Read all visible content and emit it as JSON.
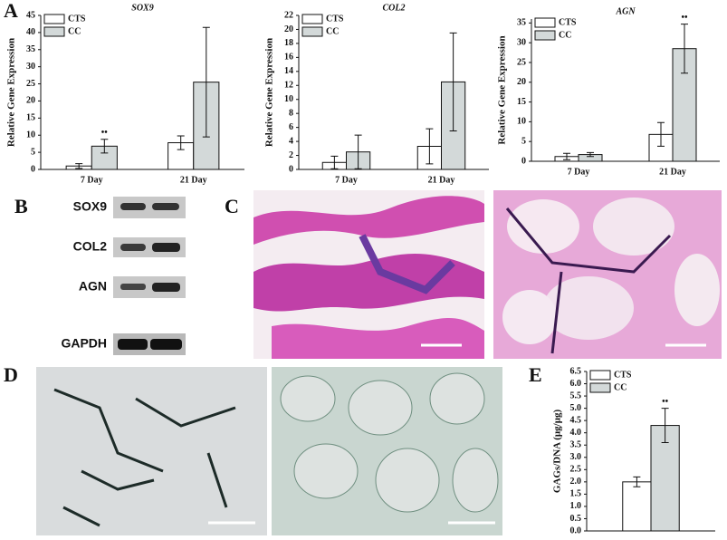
{
  "panels": {
    "a": "A",
    "b": "B",
    "c": "C",
    "d": "D",
    "e": "E"
  },
  "blot": {
    "labels": [
      "SOX9",
      "COL2",
      "AGN",
      "GAPDH"
    ]
  },
  "chart_data": [
    {
      "type": "bar",
      "title": "SOX9",
      "y_label": "Relative Gene Expression",
      "categories": [
        "7 Day",
        "21 Day"
      ],
      "series": [
        {
          "name": "CTS",
          "color": "#ffffff",
          "values": [
            1,
            7.8
          ],
          "errors": [
            0.7,
            2
          ]
        },
        {
          "name": "CC",
          "color": "#d3d9d9",
          "values": [
            6.8,
            25.5
          ],
          "errors": [
            2,
            16
          ]
        }
      ],
      "annotations": [
        "••"
      ],
      "ylim": [
        0,
        45
      ],
      "yticks": [
        0,
        5,
        10,
        15,
        20,
        25,
        30,
        35,
        40,
        45
      ]
    },
    {
      "type": "bar",
      "title": "COL2",
      "y_label": "Relative Gene Expression",
      "categories": [
        "7 Day",
        "21 Day"
      ],
      "series": [
        {
          "name": "CTS",
          "color": "#ffffff",
          "values": [
            1,
            3.3
          ],
          "errors": [
            0.9,
            2.5
          ]
        },
        {
          "name": "CC",
          "color": "#d3d9d9",
          "values": [
            2.5,
            12.5
          ],
          "errors": [
            2.4,
            7
          ]
        }
      ],
      "annotations": [],
      "ylim": [
        0,
        22
      ],
      "yticks": [
        0,
        2,
        4,
        6,
        8,
        10,
        12,
        14,
        16,
        18,
        20,
        22
      ]
    },
    {
      "type": "bar",
      "title": "AGN",
      "y_label": "Relative Gene Expression",
      "categories": [
        "7 Day",
        "21 Day"
      ],
      "series": [
        {
          "name": "CTS",
          "color": "#ffffff",
          "values": [
            1.2,
            6.8
          ],
          "errors": [
            0.8,
            3
          ]
        },
        {
          "name": "CC",
          "color": "#d3d9d9",
          "values": [
            1.7,
            28.5
          ],
          "errors": [
            0.5,
            6.2
          ]
        }
      ],
      "annotations": [
        "••"
      ],
      "ylim": [
        0,
        36
      ],
      "yticks": [
        0,
        5,
        10,
        15,
        20,
        25,
        30,
        35
      ]
    },
    {
      "type": "bar",
      "title": null,
      "y_label": "GAGs/DNA (μg/μg)",
      "categories": [
        null
      ],
      "series": [
        {
          "name": "CTS",
          "color": "#ffffff",
          "values": [
            2.0
          ],
          "errors": [
            0.2
          ]
        },
        {
          "name": "CC",
          "color": "#d3d9d9",
          "values": [
            4.3
          ],
          "errors": [
            0.7
          ]
        }
      ],
      "annotations": [
        "••"
      ],
      "ylim": [
        0,
        6.5
      ],
      "yticks": [
        {
          "value": 0,
          "label": "0.0"
        },
        0.5,
        {
          "value": 1,
          "label": "1.0"
        },
        1.5,
        {
          "value": 2,
          "label": "2.0"
        },
        2.5,
        {
          "value": 3,
          "label": "3.0"
        },
        3.5,
        {
          "value": 4,
          "label": "4.0"
        },
        4.5,
        {
          "value": 5,
          "label": "5.0"
        },
        5.5,
        {
          "value": 6,
          "label": "6.0"
        },
        6.5
      ]
    }
  ]
}
